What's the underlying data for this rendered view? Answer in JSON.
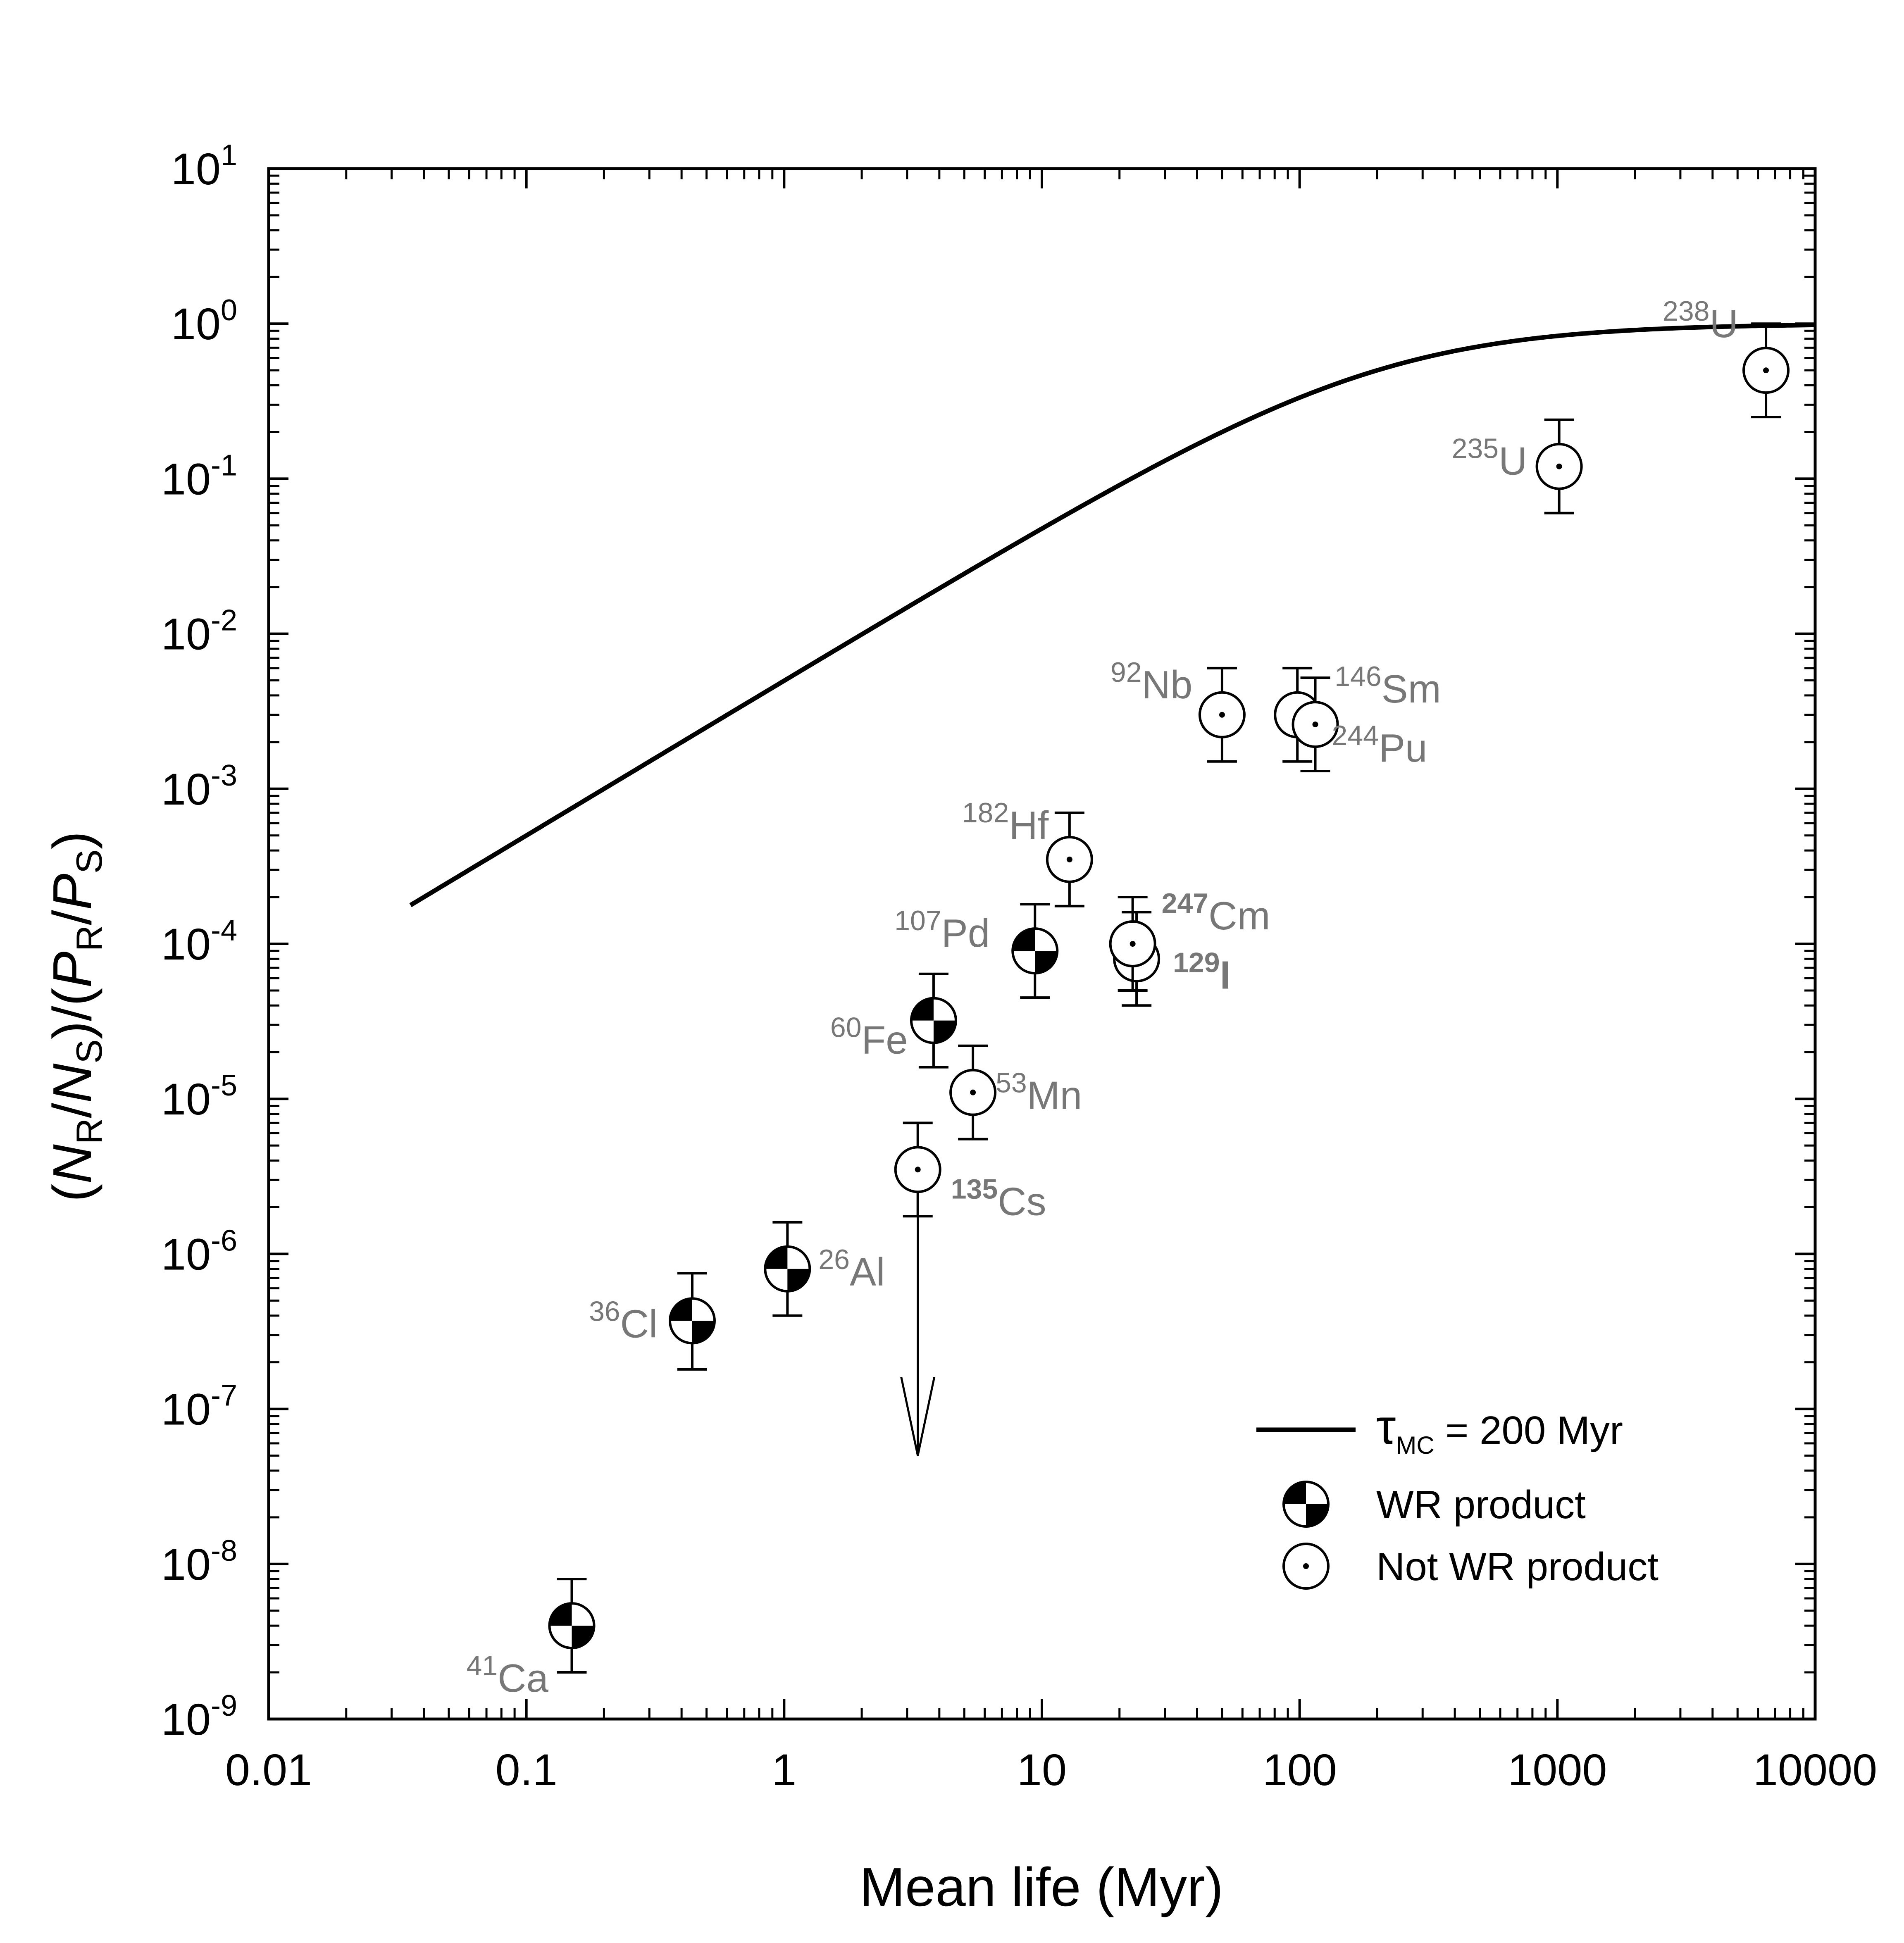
{
  "chart_data": {
    "type": "scatter",
    "title": "",
    "xlabel": "Mean life (Myr)",
    "ylabel": {
      "open": "(",
      "n": "N",
      "r": "R",
      "slash1": "/",
      "ns": "N",
      "s": "S",
      "mid": ")/(",
      "p": "P",
      "pr": "R",
      "slash2": "/",
      "ps": "P",
      "ss": "S",
      "close": ")"
    },
    "x_scale": "log",
    "y_scale": "log",
    "xlim": [
      0.01,
      10000
    ],
    "ylim": [
      1e-09,
      10
    ],
    "x_ticks": [
      {
        "value": 0.01,
        "label": "0.01"
      },
      {
        "value": 0.1,
        "label": "0.1"
      },
      {
        "value": 1,
        "label": "1"
      },
      {
        "value": 10,
        "label": "10"
      },
      {
        "value": 100,
        "label": "100"
      },
      {
        "value": 1000,
        "label": "1000"
      },
      {
        "value": 10000,
        "label": "10000"
      }
    ],
    "y_ticks": [
      {
        "value": 1e-09,
        "base": "10",
        "exp": "-9"
      },
      {
        "value": 1e-08,
        "base": "10",
        "exp": "-8"
      },
      {
        "value": 1e-07,
        "base": "10",
        "exp": "-7"
      },
      {
        "value": 1e-06,
        "base": "10",
        "exp": "-6"
      },
      {
        "value": 1e-05,
        "base": "10",
        "exp": "-5"
      },
      {
        "value": 0.0001,
        "base": "10",
        "exp": "-4"
      },
      {
        "value": 0.001,
        "base": "10",
        "exp": "-3"
      },
      {
        "value": 0.01,
        "base": "10",
        "exp": "-2"
      },
      {
        "value": 0.1,
        "base": "10",
        "exp": "-1"
      },
      {
        "value": 1,
        "base": "10",
        "exp": "0"
      },
      {
        "value": 10,
        "base": "10",
        "exp": "1"
      }
    ],
    "series": [
      {
        "name": "WR product",
        "marker": "quartered-circle",
        "points": [
          {
            "isotope": "41Ca",
            "mass": "41",
            "element": "Ca",
            "x": 0.15,
            "y": 4e-09,
            "y_low": 2e-09,
            "y_high": 8e-09
          },
          {
            "isotope": "36Cl",
            "mass": "36",
            "element": "Cl",
            "x": 0.44,
            "y": 3.7e-07,
            "y_low": 1.8e-07,
            "y_high": 7.5e-07
          },
          {
            "isotope": "26Al",
            "mass": "26",
            "element": "Al",
            "x": 1.03,
            "y": 8e-07,
            "y_low": 4e-07,
            "y_high": 1.6e-06
          },
          {
            "isotope": "60Fe",
            "mass": "60",
            "element": "Fe",
            "x": 3.8,
            "y": 3.2e-05,
            "y_low": 1.6e-05,
            "y_high": 6.4e-05
          },
          {
            "isotope": "107Pd",
            "mass": "107",
            "element": "Pd",
            "x": 9.4,
            "y": 9e-05,
            "y_low": 4.5e-05,
            "y_high": 0.00018
          }
        ]
      },
      {
        "name": "Not WR product",
        "marker": "dotted-circle",
        "points": [
          {
            "isotope": "135Cs",
            "mass": "135",
            "element": "Cs",
            "x": 3.3,
            "y": 3.5e-06,
            "y_low": 1.75e-06,
            "y_high": 7e-06,
            "upper_limit_to": 5e-08
          },
          {
            "isotope": "53Mn",
            "mass": "53",
            "element": "Mn",
            "x": 5.4,
            "y": 1.1e-05,
            "y_low": 5.5e-06,
            "y_high": 2.2e-05
          },
          {
            "isotope": "182Hf",
            "mass": "182",
            "element": "Hf",
            "x": 12.8,
            "y": 0.00035,
            "y_low": 0.000175,
            "y_high": 0.0007
          },
          {
            "isotope": "129I",
            "mass": "129",
            "element": "I",
            "x": 23.3,
            "y": 8e-05,
            "y_low": 4e-05,
            "y_high": 0.00016
          },
          {
            "isotope": "247Cm",
            "mass": "247",
            "element": "Cm",
            "x": 22.5,
            "y": 0.0001,
            "y_low": 5e-05,
            "y_high": 0.0002
          },
          {
            "isotope": "92Nb",
            "mass": "92",
            "element": "Nb",
            "x": 50,
            "y": 0.003,
            "y_low": 0.0015,
            "y_high": 0.006
          },
          {
            "isotope": "146Sm",
            "mass": "146",
            "element": "Sm",
            "x": 98,
            "y": 0.003,
            "y_low": 0.0015,
            "y_high": 0.006
          },
          {
            "isotope": "244Pu",
            "mass": "244",
            "element": "Pu",
            "x": 115,
            "y": 0.0026,
            "y_low": 0.0013,
            "y_high": 0.0052
          },
          {
            "isotope": "235U",
            "mass": "235",
            "element": "U",
            "x": 1016,
            "y": 0.12,
            "y_low": 0.06,
            "y_high": 0.24
          },
          {
            "isotope": "238U",
            "mass": "238",
            "element": "U",
            "x": 6446,
            "y": 0.5,
            "y_low": 0.25,
            "y_high": 1.0
          }
        ]
      }
    ],
    "model_curve": {
      "name": "tau_MC = 200 Myr",
      "tau_mc": 200,
      "formula": "y = tau / (tau + 200)",
      "x_range": [
        0.0355,
        10000
      ]
    },
    "legend": {
      "position": "bottom-right",
      "entries": [
        {
          "kind": "line",
          "symbol": "τ",
          "sub": "MC",
          "text": " = 200 Myr"
        },
        {
          "kind": "wr",
          "text": "WR product"
        },
        {
          "kind": "notwr",
          "text": "Not WR product"
        }
      ]
    },
    "grid": false
  }
}
